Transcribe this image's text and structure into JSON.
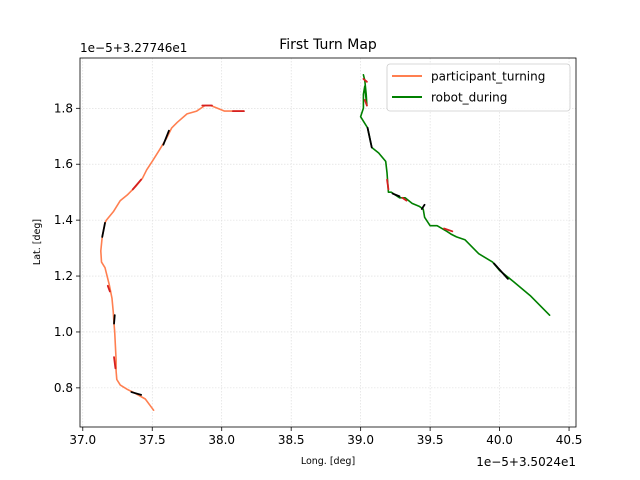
{
  "chart_data": {
    "type": "line",
    "title": "First Turn Map",
    "xlabel": "Long. [deg]",
    "ylabel": "Lat. [deg]",
    "x_offset_label": "1e−5+3.5024e1",
    "y_offset_label": "1e−5+3.27746e1",
    "xlim": [
      36.98,
      40.55
    ],
    "ylim": [
      0.66,
      1.98
    ],
    "xticks": [
      37.0,
      37.5,
      38.0,
      38.5,
      39.0,
      39.5,
      40.0,
      40.5
    ],
    "xtick_labels": [
      "37.0",
      "37.5",
      "38.0",
      "38.5",
      "39.0",
      "39.5",
      "40.0",
      "40.5"
    ],
    "yticks": [
      0.8,
      1.0,
      1.2,
      1.4,
      1.6,
      1.8
    ],
    "ytick_labels": [
      "0.8",
      "1.0",
      "1.2",
      "1.4",
      "1.6",
      "1.8"
    ],
    "grid": true,
    "legend_position": "top-right",
    "colors": {
      "participant_turning": "#ff7f50",
      "robot_during": "#008000",
      "highlight_black": "#000000",
      "highlight_red": "#d62020"
    },
    "series": [
      {
        "name": "participant_turning",
        "color": "#ff7f50",
        "x": [
          37.51,
          37.45,
          37.38,
          37.32,
          37.27,
          37.245,
          37.24,
          37.24,
          37.235,
          37.23,
          37.225,
          37.22,
          37.21,
          37.19,
          37.16,
          37.135,
          37.13,
          37.14,
          37.16,
          37.17,
          37.22,
          37.27,
          37.32,
          37.38,
          37.43,
          37.46,
          37.5,
          37.55,
          37.6,
          37.64,
          37.68,
          37.75,
          37.82,
          37.88,
          37.92,
          37.97,
          38.02,
          38.1,
          38.16
        ],
        "y": [
          0.72,
          0.76,
          0.78,
          0.795,
          0.81,
          0.83,
          0.86,
          0.9,
          0.95,
          1.0,
          1.03,
          1.07,
          1.12,
          1.17,
          1.23,
          1.25,
          1.29,
          1.34,
          1.39,
          1.4,
          1.43,
          1.47,
          1.49,
          1.52,
          1.55,
          1.58,
          1.61,
          1.65,
          1.69,
          1.73,
          1.75,
          1.78,
          1.79,
          1.81,
          1.81,
          1.8,
          1.79,
          1.79,
          1.79
        ]
      },
      {
        "name": "robot_during",
        "color": "#008000",
        "x": [
          39.02,
          39.03,
          39.04,
          39.045,
          39.04,
          39.035,
          39.03,
          39.02,
          39.02,
          39.0,
          39.05,
          39.08,
          39.13,
          39.18,
          39.19,
          39.2,
          39.22,
          39.28,
          39.32,
          39.37,
          39.42,
          39.45,
          39.46,
          39.5,
          39.55,
          39.62,
          39.65,
          39.69,
          39.75,
          39.85,
          39.95,
          40.0,
          40.1,
          40.22,
          40.36
        ],
        "y": [
          1.92,
          1.9,
          1.85,
          1.81,
          1.83,
          1.85,
          1.88,
          1.85,
          1.8,
          1.77,
          1.73,
          1.66,
          1.64,
          1.61,
          1.57,
          1.5,
          1.5,
          1.48,
          1.48,
          1.46,
          1.45,
          1.44,
          1.41,
          1.38,
          1.38,
          1.36,
          1.35,
          1.34,
          1.33,
          1.28,
          1.25,
          1.22,
          1.18,
          1.13,
          1.06
        ]
      }
    ],
    "highlight_segments": [
      {
        "color": "#000000",
        "x": [
          37.35,
          37.42
        ],
        "y": [
          0.785,
          0.775
        ]
      },
      {
        "color": "#d62020",
        "x": [
          37.225,
          37.235
        ],
        "y": [
          0.91,
          0.87
        ]
      },
      {
        "color": "#000000",
        "x": [
          37.225,
          37.23
        ],
        "y": [
          1.03,
          1.06
        ]
      },
      {
        "color": "#d62020",
        "x": [
          37.18,
          37.195
        ],
        "y": [
          1.165,
          1.145
        ]
      },
      {
        "color": "#000000",
        "x": [
          37.14,
          37.16
        ],
        "y": [
          1.34,
          1.39
        ]
      },
      {
        "color": "#d62020",
        "x": [
          37.36,
          37.42
        ],
        "y": [
          1.51,
          1.545
        ]
      },
      {
        "color": "#000000",
        "x": [
          37.58,
          37.62
        ],
        "y": [
          1.67,
          1.72
        ]
      },
      {
        "color": "#d62020",
        "x": [
          37.86,
          37.93
        ],
        "y": [
          1.81,
          1.81
        ]
      },
      {
        "color": "#d62020",
        "x": [
          38.08,
          38.16
        ],
        "y": [
          1.79,
          1.79
        ]
      },
      {
        "color": "#d62020",
        "x": [
          39.02,
          39.045
        ],
        "y": [
          1.905,
          1.895
        ]
      },
      {
        "color": "#d62020",
        "x": [
          39.03,
          39.045
        ],
        "y": [
          1.83,
          1.81
        ]
      },
      {
        "color": "#000000",
        "x": [
          39.05,
          39.08
        ],
        "y": [
          1.73,
          1.66
        ]
      },
      {
        "color": "#d62020",
        "x": [
          39.19,
          39.2
        ],
        "y": [
          1.545,
          1.51
        ]
      },
      {
        "color": "#000000",
        "x": [
          39.23,
          39.28
        ],
        "y": [
          1.495,
          1.485
        ]
      },
      {
        "color": "#d62020",
        "x": [
          39.3,
          39.33
        ],
        "y": [
          1.48,
          1.47
        ]
      },
      {
        "color": "#000000",
        "x": [
          39.44,
          39.46
        ],
        "y": [
          1.44,
          1.455
        ]
      },
      {
        "color": "#d62020",
        "x": [
          39.6,
          39.66
        ],
        "y": [
          1.37,
          1.36
        ]
      },
      {
        "color": "#000000",
        "x": [
          39.96,
          40.06
        ],
        "y": [
          1.245,
          1.19
        ]
      }
    ]
  }
}
